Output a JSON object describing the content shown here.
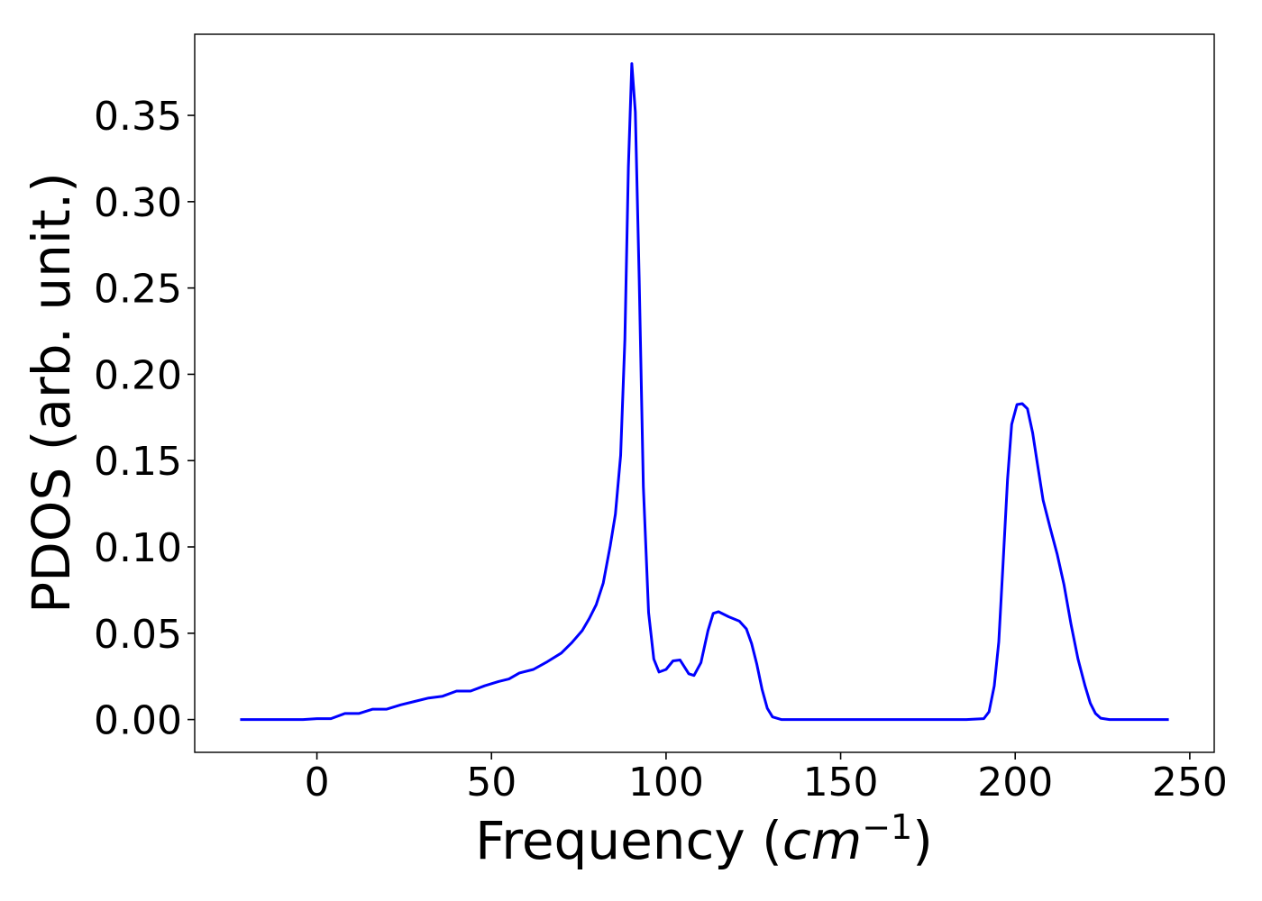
{
  "chart_data": {
    "type": "line",
    "xlabel": {
      "main": "Frequency (",
      "math": "cm",
      "sup": "−1",
      "close": ")"
    },
    "ylabel": "PDOS (arb. unit.)",
    "xlim": [
      -35,
      257
    ],
    "ylim": [
      -0.019,
      0.397
    ],
    "grid": false,
    "x_ticks": [
      0,
      50,
      100,
      150,
      200,
      250
    ],
    "x_tick_labels": [
      "0",
      "50",
      "100",
      "150",
      "200",
      "250"
    ],
    "y_ticks": [
      0.0,
      0.05,
      0.1,
      0.15,
      0.2,
      0.25,
      0.3,
      0.35
    ],
    "y_tick_labels": [
      "0.00",
      "0.05",
      "0.10",
      "0.15",
      "0.20",
      "0.25",
      "0.30",
      "0.35"
    ],
    "series": [
      {
        "color": "#0000ff",
        "points": [
          [
            -22,
            0.0
          ],
          [
            -10,
            0.0
          ],
          [
            -4,
            0.0
          ],
          [
            0,
            0.0005
          ],
          [
            4,
            0.0005
          ],
          [
            8,
            0.0035
          ],
          [
            12,
            0.0035
          ],
          [
            16,
            0.006
          ],
          [
            20,
            0.006
          ],
          [
            24,
            0.0085
          ],
          [
            28,
            0.0105
          ],
          [
            32,
            0.0125
          ],
          [
            36,
            0.0135
          ],
          [
            40,
            0.0165
          ],
          [
            44,
            0.0165
          ],
          [
            48,
            0.0195
          ],
          [
            52,
            0.022
          ],
          [
            55,
            0.0235
          ],
          [
            58,
            0.027
          ],
          [
            62,
            0.029
          ],
          [
            66,
            0.0335
          ],
          [
            70,
            0.0385
          ],
          [
            73,
            0.0445
          ],
          [
            76,
            0.0515
          ],
          [
            78,
            0.0585
          ],
          [
            80,
            0.0665
          ],
          [
            82,
            0.079
          ],
          [
            84,
            0.1005
          ],
          [
            85.5,
            0.119
          ],
          [
            87,
            0.153
          ],
          [
            88.2,
            0.22
          ],
          [
            89.2,
            0.32
          ],
          [
            90.2,
            0.38
          ],
          [
            91.2,
            0.352
          ],
          [
            92.3,
            0.255
          ],
          [
            93.5,
            0.135
          ],
          [
            95,
            0.062
          ],
          [
            96.5,
            0.035
          ],
          [
            98,
            0.0275
          ],
          [
            100,
            0.029
          ],
          [
            102,
            0.034
          ],
          [
            104,
            0.0345
          ],
          [
            106.5,
            0.0265
          ],
          [
            108,
            0.0255
          ],
          [
            110,
            0.033
          ],
          [
            112,
            0.0515
          ],
          [
            113.5,
            0.0615
          ],
          [
            115,
            0.0625
          ],
          [
            118,
            0.0595
          ],
          [
            121,
            0.057
          ],
          [
            123,
            0.0525
          ],
          [
            124.5,
            0.044
          ],
          [
            126,
            0.032
          ],
          [
            127.5,
            0.0175
          ],
          [
            129,
            0.0065
          ],
          [
            130.5,
            0.0015
          ],
          [
            133,
            0.0
          ],
          [
            160,
            0.0
          ],
          [
            186,
            0.0
          ],
          [
            191,
            0.0005
          ],
          [
            192.5,
            0.0045
          ],
          [
            194,
            0.0195
          ],
          [
            195.3,
            0.045
          ],
          [
            196.5,
            0.09
          ],
          [
            197.8,
            0.139
          ],
          [
            199,
            0.171
          ],
          [
            200.5,
            0.1825
          ],
          [
            202,
            0.183
          ],
          [
            203.5,
            0.18
          ],
          [
            205,
            0.166
          ],
          [
            206.3,
            0.149
          ],
          [
            208,
            0.127
          ],
          [
            210,
            0.111
          ],
          [
            212,
            0.096
          ],
          [
            214,
            0.078
          ],
          [
            216,
            0.055
          ],
          [
            218,
            0.035
          ],
          [
            220,
            0.0195
          ],
          [
            221.5,
            0.0095
          ],
          [
            223,
            0.0035
          ],
          [
            224.5,
            0.0008
          ],
          [
            227,
            0.0
          ],
          [
            235,
            0.0
          ],
          [
            244,
            0.0
          ]
        ]
      }
    ]
  }
}
